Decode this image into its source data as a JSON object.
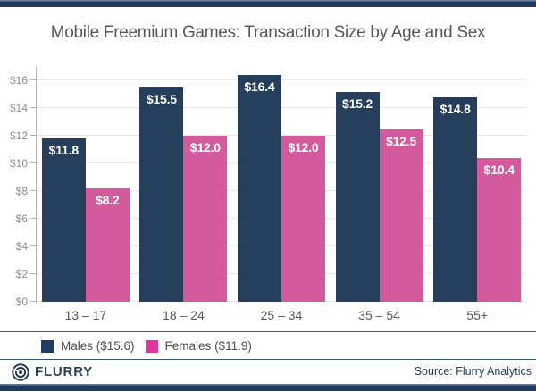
{
  "title": "Mobile Freemium Games: Transaction Size by Age and Sex",
  "chart_data": {
    "type": "bar",
    "categories": [
      "13 – 17",
      "18 – 24",
      "25 – 34",
      "35 – 54",
      "55+"
    ],
    "series": [
      {
        "name": "Males",
        "legend_label": "Males ($15.6)",
        "color": "#243e5c",
        "legend_color": "#1e3c64",
        "values": [
          11.8,
          15.5,
          16.4,
          15.2,
          14.8
        ],
        "value_labels": [
          "$11.8",
          "$15.5",
          "$16.4",
          "$15.2",
          "$14.8"
        ]
      },
      {
        "name": "Females",
        "legend_label": "Females ($11.9)",
        "color": "#d45a9e",
        "legend_color": "#de379c",
        "values": [
          8.2,
          12.0,
          12.0,
          12.5,
          10.4
        ],
        "value_labels": [
          "$8.2",
          "$12.0",
          "$12.0",
          "$12.5",
          "$10.4"
        ]
      }
    ],
    "yaxis": {
      "ticks": [
        "$0",
        "$2",
        "$4",
        "$6",
        "$8",
        "$10",
        "$12",
        "$14",
        "$16"
      ],
      "tick_values": [
        0,
        2,
        4,
        6,
        8,
        10,
        12,
        14,
        16
      ],
      "max": 17
    },
    "xlabel": "",
    "ylabel": "",
    "grid": true,
    "legend_position": "bottom"
  },
  "footer": {
    "brand": "FLURRY",
    "source": "Source: Flurry Analytics"
  },
  "icons": {
    "flurry_logo": "flurry-logo-icon"
  },
  "colors": {
    "frame_bar": "#1e3a5f",
    "rule_line": "#3f5a7d",
    "title_text": "#58585b",
    "axis_line": "#b2b2b2",
    "gridline": "#e6e6e6",
    "axis_label": "#8c8c8c",
    "bar_value_text": "#ffffff",
    "male_bar": "#243e5c",
    "female_bar": "#d45a9e"
  }
}
